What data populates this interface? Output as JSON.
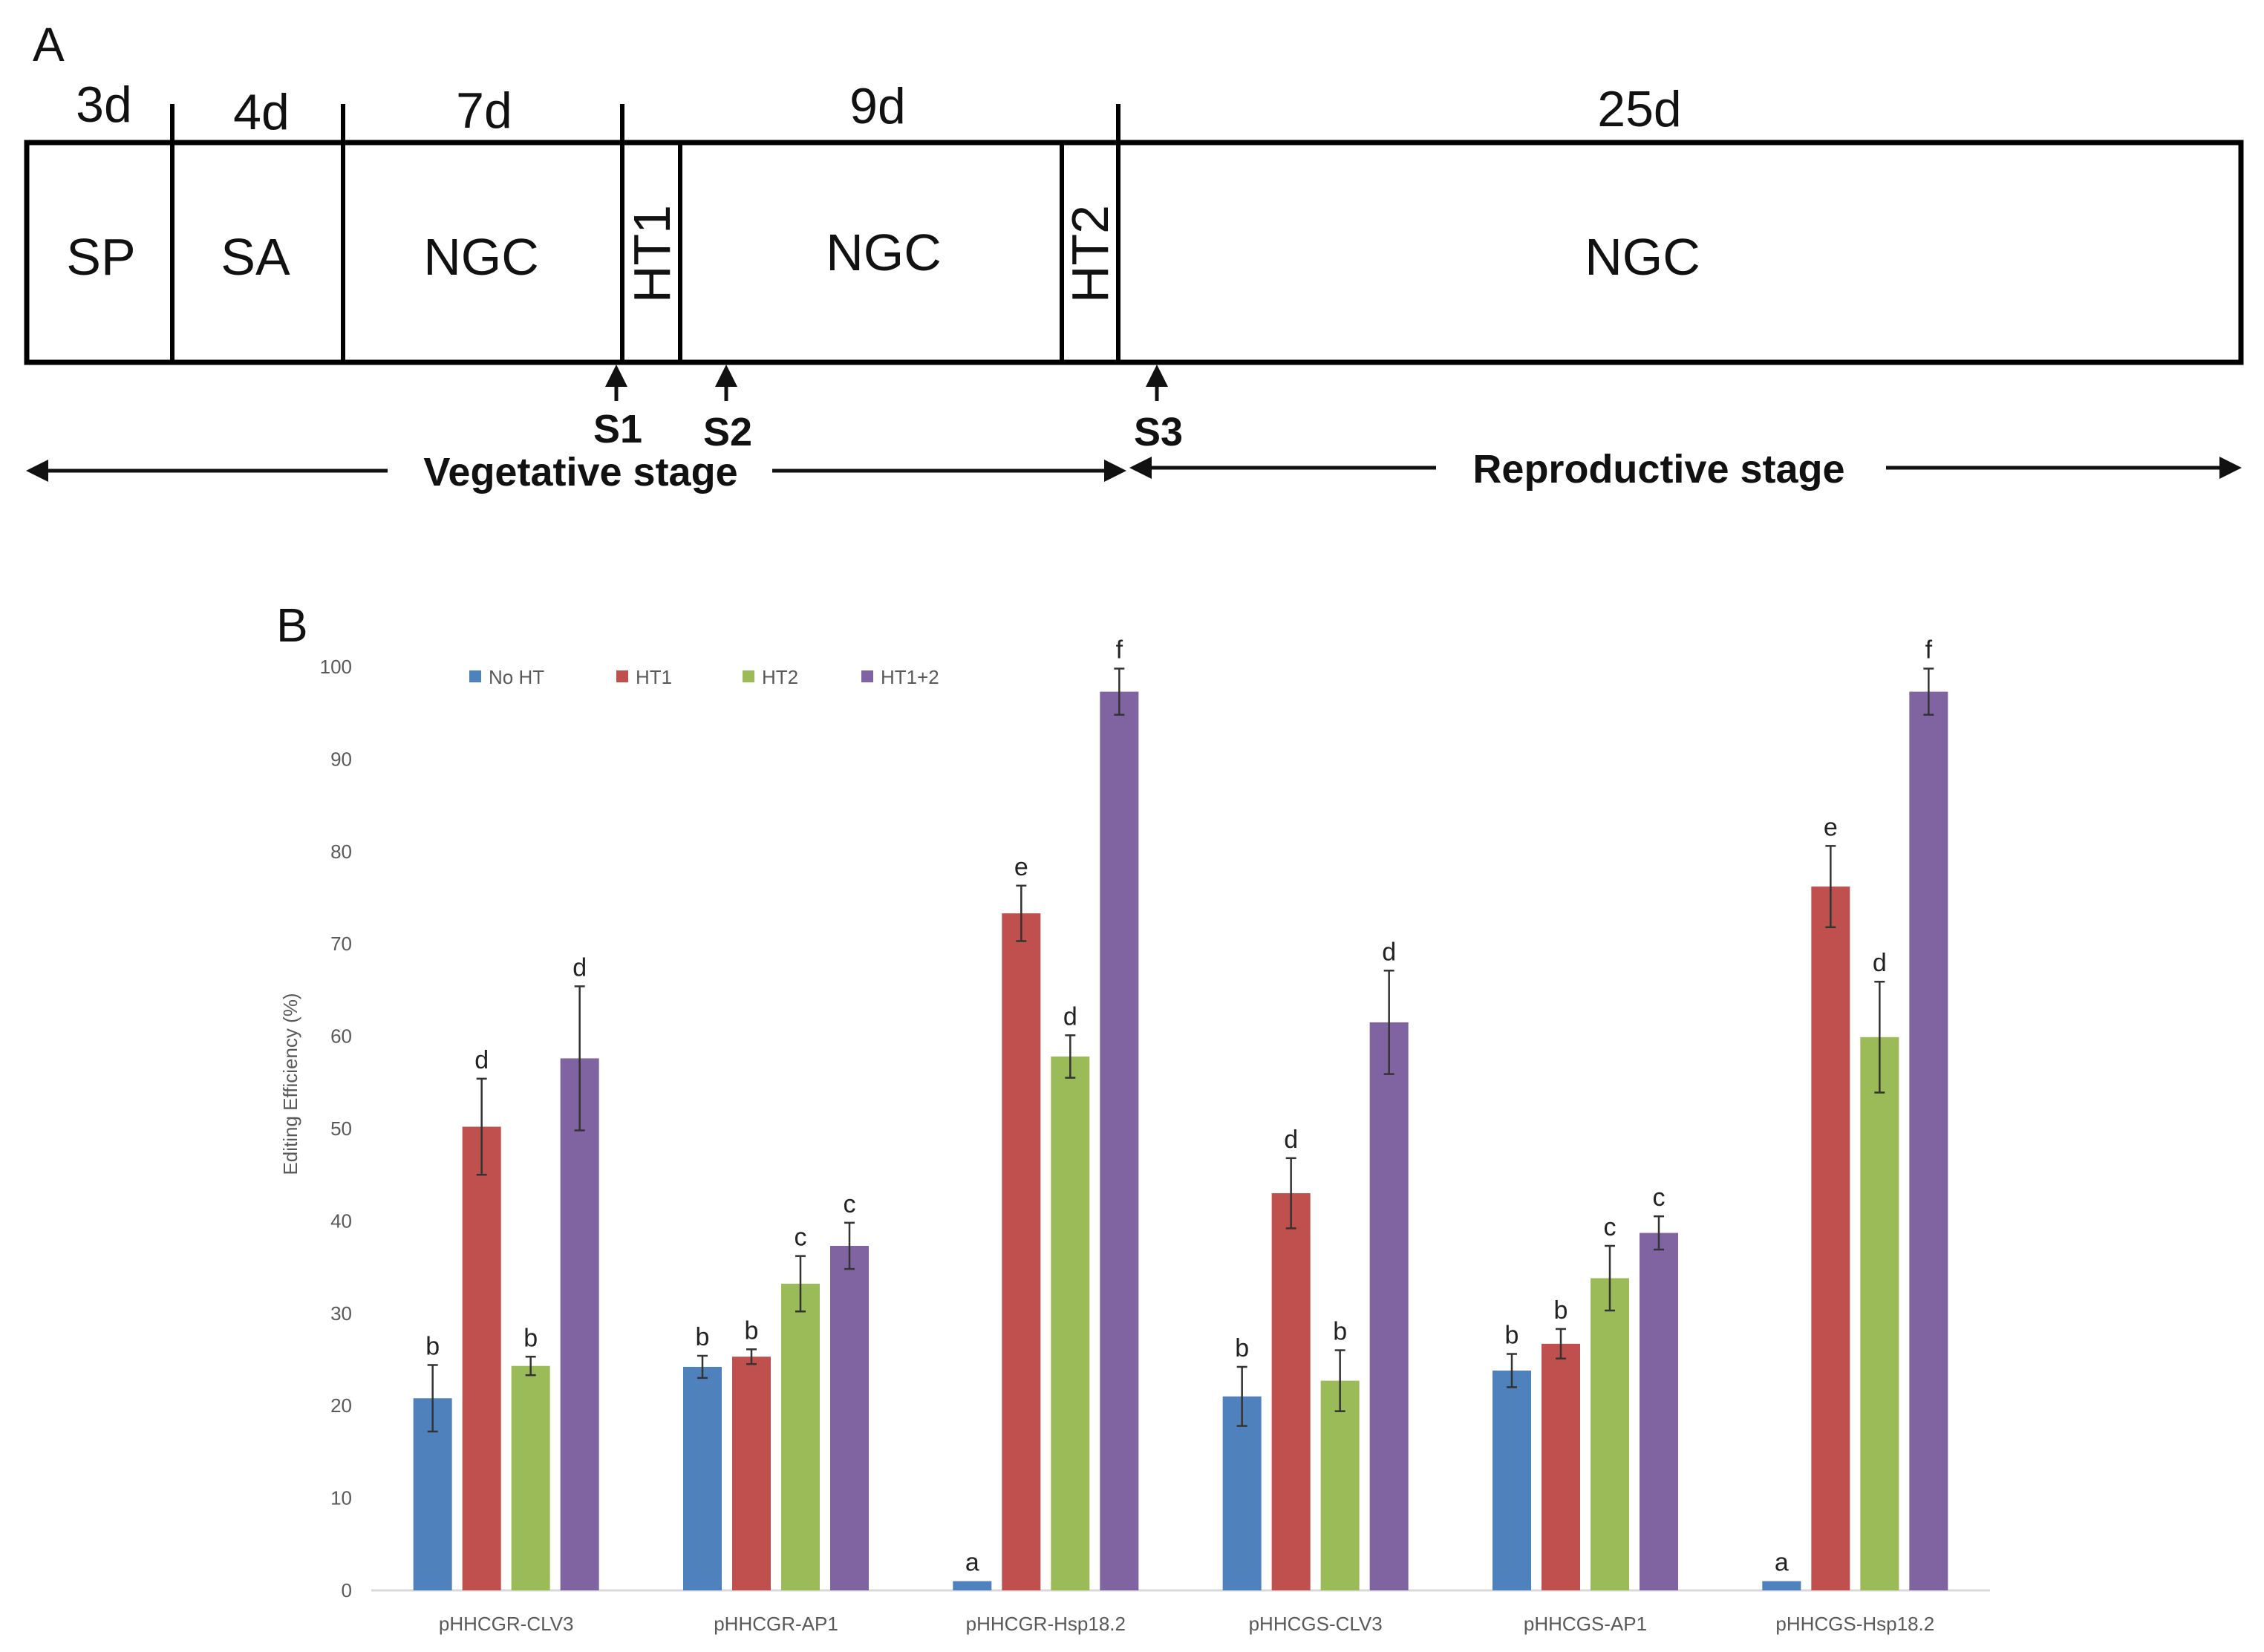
{
  "timeline": {
    "panel_label": "A",
    "segments": [
      {
        "duration": "3d",
        "label": "SP"
      },
      {
        "duration": "4d",
        "label": "SA"
      },
      {
        "duration": "7d",
        "label": "NGC"
      },
      {
        "duration": "",
        "label": "HT1"
      },
      {
        "duration": "9d",
        "label": "NGC"
      },
      {
        "duration": "",
        "label": "HT2"
      },
      {
        "duration": "25d",
        "label": "NGC"
      }
    ],
    "samples": [
      "S1",
      "S2",
      "S3"
    ],
    "stages": [
      "Vegetative stage",
      "Reproductive stage"
    ]
  },
  "chart_data": {
    "panel_label": "B",
    "type": "bar",
    "ylabel": "Editing Efficiency (%)",
    "ylim": [
      0,
      100
    ],
    "yticks": [
      0,
      10,
      20,
      30,
      40,
      50,
      60,
      70,
      80,
      90,
      100
    ],
    "grid": false,
    "legend_position": "top-left",
    "categories": [
      "pHHCGR-CLV3",
      "pHHCGR-AP1",
      "pHHCGR-Hsp18.2",
      "pHHCGS-CLV3",
      "pHHCGS-AP1",
      "pHHCGS-Hsp18.2"
    ],
    "series": [
      {
        "name": "No HT",
        "color": "#4f81bd",
        "values": [
          20.8,
          24.2,
          1.0,
          21.0,
          23.8,
          1.0
        ],
        "errors": [
          3.6,
          1.2,
          0,
          3.2,
          1.8,
          0
        ],
        "letters": [
          "b",
          "b",
          "a",
          "b",
          "b",
          "a"
        ]
      },
      {
        "name": "HT1",
        "color": "#c0504d",
        "values": [
          50.2,
          25.3,
          73.3,
          43.0,
          26.7,
          76.2
        ],
        "errors": [
          5.2,
          0.8,
          3.0,
          3.8,
          1.6,
          4.4
        ],
        "letters": [
          "d",
          "b",
          "e",
          "d",
          "b",
          "e"
        ]
      },
      {
        "name": "HT2",
        "color": "#9bbb59",
        "values": [
          24.3,
          33.2,
          57.8,
          22.7,
          33.8,
          59.9
        ],
        "errors": [
          1.0,
          3.0,
          2.3,
          3.3,
          3.5,
          6.0
        ],
        "letters": [
          "b",
          "c",
          "d",
          "b",
          "c",
          "d"
        ]
      },
      {
        "name": "HT1+2",
        "color": "#8064a2",
        "values": [
          57.6,
          37.3,
          97.3,
          61.5,
          38.7,
          97.3
        ],
        "errors": [
          7.8,
          2.5,
          2.5,
          5.6,
          1.8,
          2.5
        ],
        "letters": [
          "d",
          "c",
          "f",
          "d",
          "c",
          "f"
        ]
      }
    ]
  }
}
